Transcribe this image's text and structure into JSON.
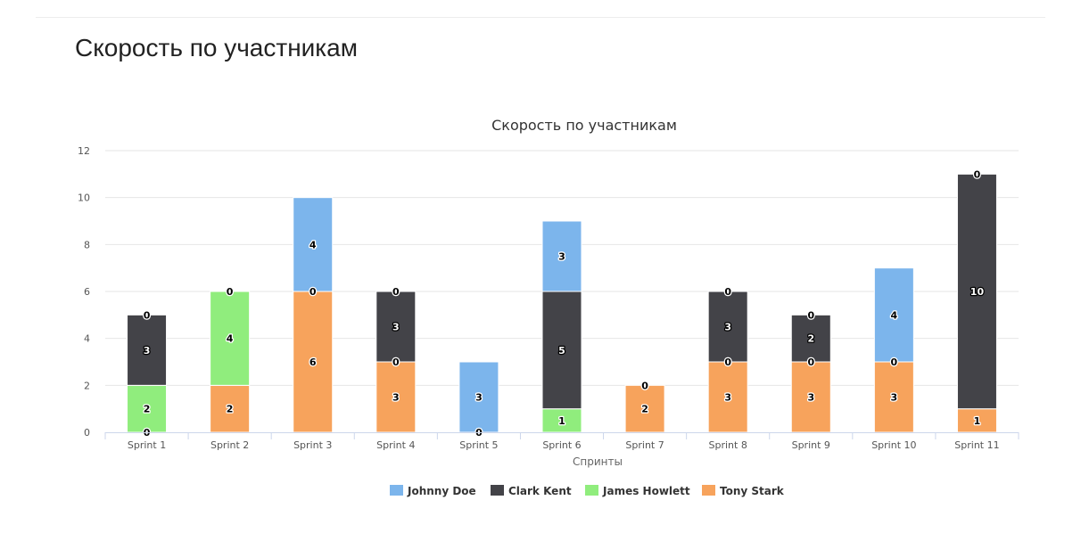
{
  "page": {
    "title": "Скорость по участникам"
  },
  "chart_data": {
    "type": "bar",
    "stacked": true,
    "title": "Скорость по участникам",
    "xlabel": "Спринты",
    "ylabel": "",
    "ylim": [
      0,
      12
    ],
    "yticks": [
      0,
      2,
      4,
      6,
      8,
      10,
      12
    ],
    "grid": true,
    "legend_position": "bottom",
    "categories": [
      "Sprint 1",
      "Sprint 2",
      "Sprint 3",
      "Sprint 4",
      "Sprint 5",
      "Sprint 6",
      "Sprint 7",
      "Sprint 8",
      "Sprint 9",
      "Sprint 10",
      "Sprint 11"
    ],
    "series": [
      {
        "name": "Johnny Doe",
        "color": "#7cb5ec",
        "values": [
          null,
          null,
          4,
          null,
          3,
          3,
          null,
          null,
          null,
          4,
          null
        ]
      },
      {
        "name": "Clark Kent",
        "color": "#434348",
        "values": [
          3,
          null,
          null,
          3,
          null,
          5,
          null,
          3,
          2,
          null,
          10
        ]
      },
      {
        "name": "James Howlett",
        "color": "#90ed7d",
        "values": [
          2,
          4,
          null,
          null,
          null,
          1,
          null,
          null,
          null,
          null,
          null
        ]
      },
      {
        "name": "Tony Stark",
        "color": "#f7a35c",
        "values": [
          null,
          2,
          6,
          3,
          null,
          null,
          2,
          3,
          3,
          3,
          1
        ]
      }
    ],
    "zero_labels": [
      {
        "category": "Sprint 1",
        "series": "Tony Stark",
        "value": 0
      },
      {
        "category": "Sprint 1",
        "series": "Johnny Doe",
        "value": 0
      },
      {
        "category": "Sprint 2",
        "series": "Clark Kent",
        "value": 0
      },
      {
        "category": "Sprint 3",
        "series": "Clark Kent",
        "value": 0
      },
      {
        "category": "Sprint 4",
        "series": "James Howlett",
        "value": 0
      },
      {
        "category": "Sprint 4",
        "series": "Johnny Doe",
        "value": 0
      },
      {
        "category": "Sprint 5",
        "series": "Tony Stark",
        "value": 0
      },
      {
        "category": "Sprint 7",
        "series": "Clark Kent",
        "value": 0
      },
      {
        "category": "Sprint 8",
        "series": "James Howlett",
        "value": 0
      },
      {
        "category": "Sprint 8",
        "series": "Johnny Doe",
        "value": 0
      },
      {
        "category": "Sprint 9",
        "series": "James Howlett",
        "value": 0
      },
      {
        "category": "Sprint 9",
        "series": "Johnny Doe",
        "value": 0
      },
      {
        "category": "Sprint 10",
        "series": "Clark Kent",
        "value": 0
      },
      {
        "category": "Sprint 11",
        "series": "Johnny Doe",
        "value": 0
      }
    ]
  }
}
